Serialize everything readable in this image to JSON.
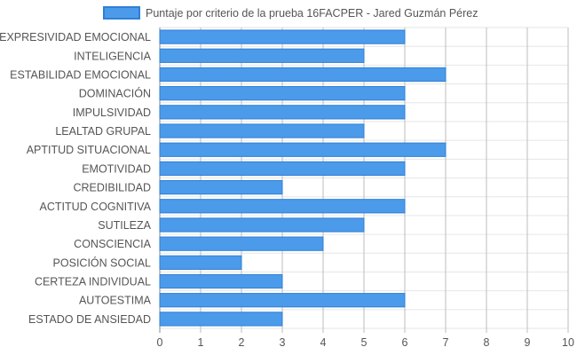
{
  "chart_data": {
    "type": "bar",
    "orientation": "horizontal",
    "categories": [
      "EXPRESIVIDAD EMOCIONAL",
      "INTELIGENCIA",
      "ESTABILIDAD EMOCIONAL",
      "DOMINACIÓN",
      "IMPULSIVIDAD",
      "LEALTAD GRUPAL",
      "APTITUD SITUACIONAL",
      "EMOTIVIDAD",
      "CREDIBILIDAD",
      "ACTITUD COGNITIVA",
      "SUTILEZA",
      "CONSCIENCIA",
      "POSICIÓN SOCIAL",
      "CERTEZA INDIVIDUAL",
      "AUTOESTIMA",
      "ESTADO DE ANSIEDAD"
    ],
    "series": [
      {
        "name": "Puntaje por criterio de la prueba 16FACPER - Jared Guzmán Pérez",
        "values": [
          6,
          5,
          7,
          6,
          6,
          5,
          7,
          6,
          3,
          6,
          5,
          4,
          2,
          3,
          6,
          3
        ],
        "color": "#4c9bea",
        "border_color": "#2f7fd6"
      }
    ],
    "xlim": [
      0,
      10
    ],
    "x_ticks": [
      "0",
      "1",
      "2",
      "3",
      "4",
      "5",
      "6",
      "7",
      "8",
      "9",
      "10"
    ],
    "grid": true,
    "legend_position": "top"
  }
}
